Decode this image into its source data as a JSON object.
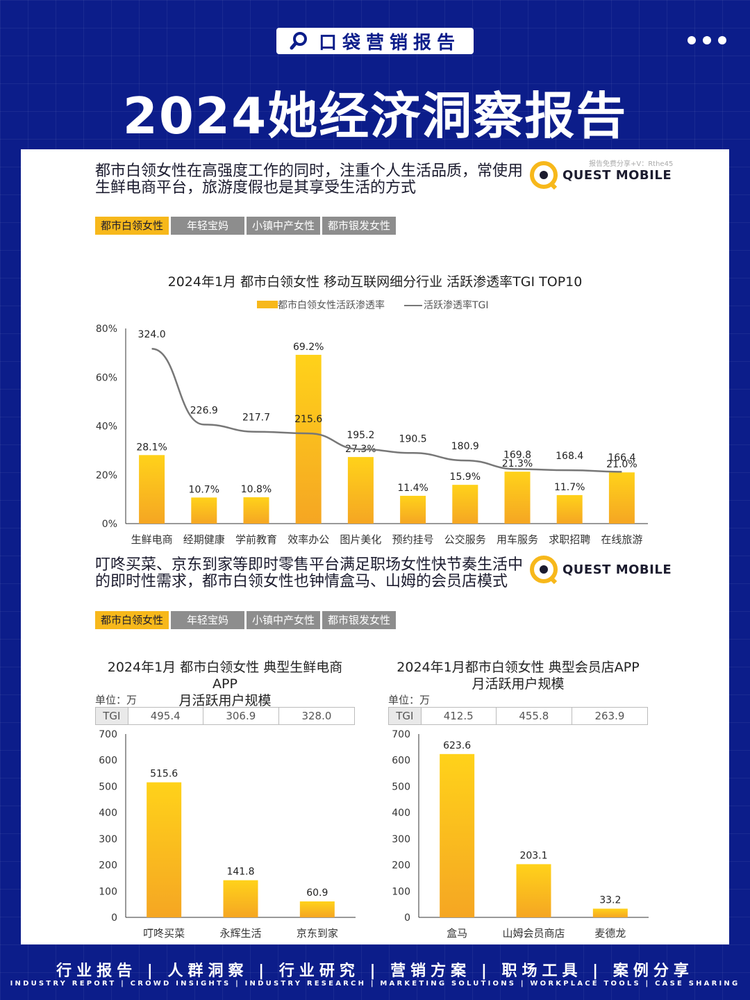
{
  "header": {
    "brand": "口袋营销报告",
    "title": "2024她经济洞察报告"
  },
  "panel": {
    "watermark": "报告免费分享+V：Rthe45",
    "logo_text": "QUEST MOBILE",
    "section1": {
      "headline_line1": "都市白领女性在高强度工作的同时，注重个人生活品质，常使用",
      "headline_line2": "生鲜电商平台，旅游度假也是其享受生活的方式"
    },
    "section2": {
      "headline_line1": "叮咚买菜、京东到家等即时零售平台满足职场女性快节奏生活中",
      "headline_line2": "的即时性需求，都市白领女性也钟情盒马、山姆的会员店模式"
    },
    "tabs": [
      "都市白领女性",
      "年轻宝妈",
      "小镇中产女性",
      "都市银发女性"
    ]
  },
  "chart_data": [
    {
      "type": "bar",
      "title": "2024年1月 都市白领女性 移动互联网细分行业 活跃渗透率TGI TOP10",
      "categories": [
        "生鲜电商",
        "经期健康",
        "学前教育",
        "效率办公",
        "图片美化",
        "预约挂号",
        "公交服务",
        "用车服务",
        "求职招聘",
        "在线旅游"
      ],
      "series": [
        {
          "name": "都市白领女性活跃渗透率",
          "values": [
            28.1,
            10.7,
            10.8,
            69.2,
            27.3,
            11.4,
            15.9,
            21.3,
            11.7,
            21.0
          ]
        },
        {
          "name": "活跃渗透率TGI",
          "type": "line",
          "values": [
            324.0,
            226.9,
            217.7,
            215.6,
            195.2,
            190.5,
            180.9,
            169.8,
            168.4,
            166.4
          ]
        }
      ],
      "yticks": [
        "0%",
        "20%",
        "40%",
        "60%",
        "80%"
      ],
      "ylim": [
        0,
        80
      ],
      "legend_position": "top",
      "color": "#f7b81b"
    },
    {
      "type": "bar",
      "title_line1": "2024年1月 都市白领女性 典型生鲜电商APP",
      "title_line2": "月活跃用户规模",
      "unit": "单位：万",
      "tgi_label": "TGI",
      "tgi": [
        "495.4",
        "306.9",
        "328.0"
      ],
      "categories": [
        "叮咚买菜",
        "永辉生活",
        "京东到家"
      ],
      "values": [
        515.6,
        141.8,
        60.9
      ],
      "ylim": [
        0,
        700
      ],
      "yticks": [
        "0",
        "100",
        "200",
        "300",
        "400",
        "500",
        "600",
        "700"
      ]
    },
    {
      "type": "bar",
      "title_line1": "2024年1月都市白领女性 典型会员店APP",
      "title_line2": "月活跃用户规模",
      "unit": "单位：万",
      "tgi_label": "TGI",
      "tgi": [
        "412.5",
        "455.8",
        "263.9"
      ],
      "categories": [
        "盒马",
        "山姆会员商店",
        "麦德龙"
      ],
      "values": [
        623.6,
        203.1,
        33.2
      ],
      "ylim": [
        0,
        700
      ],
      "yticks": [
        "0",
        "100",
        "200",
        "300",
        "400",
        "500",
        "600",
        "700"
      ]
    }
  ],
  "footer": {
    "cn": "行业报告 | 人群洞察 | 行业研究 | 营销方案 | 职场工具 | 案例分享",
    "en": "INDUSTRY REPORT | CROWD INSIGHTS | INDUSTRY RESEARCH | MARKETING SOLUTIONS | WORKPLACE TOOLS | CASE SHARING"
  }
}
